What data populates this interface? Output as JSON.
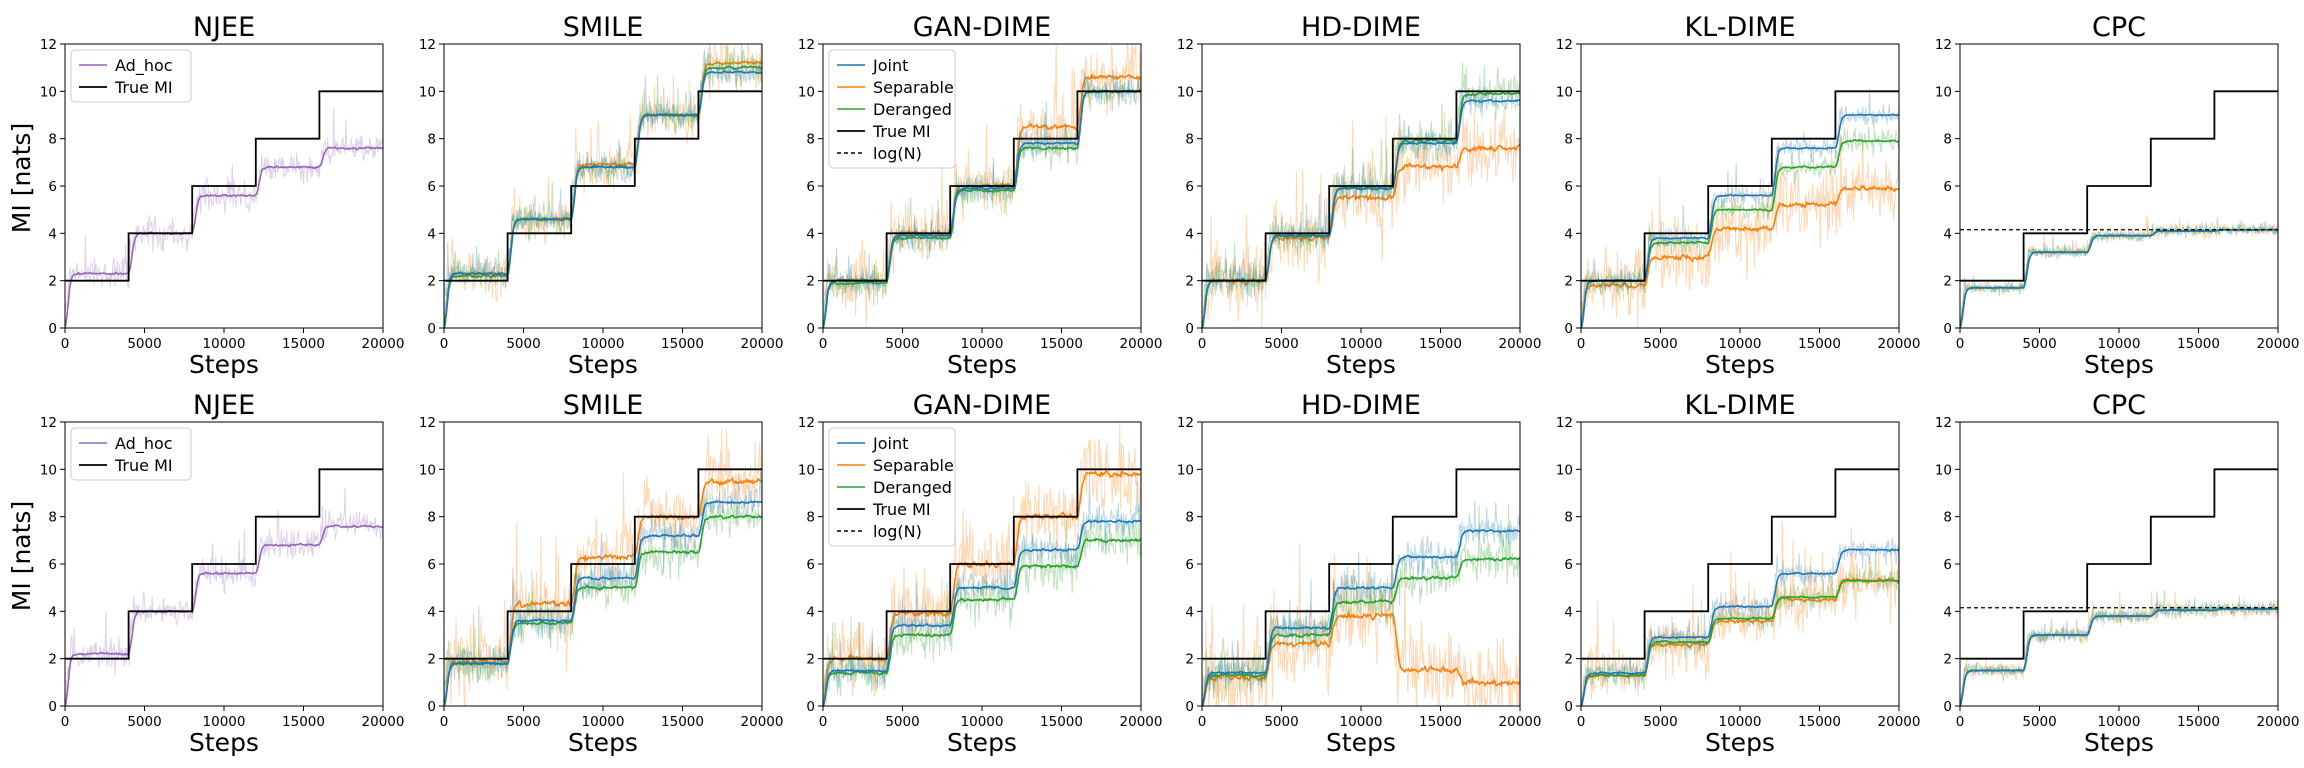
{
  "figure": {
    "ylabel": "MI [nats]",
    "xlabel": "Steps",
    "colors": {
      "Ad_hoc": "#9467bd",
      "Joint": "#1f77b4",
      "Separable": "#ff7f0e",
      "Deranged": "#2ca02c",
      "True MI": "#000000",
      "log(N)": "#000000"
    }
  },
  "chart_data": [
    {
      "row": 0,
      "col": 0,
      "type": "line",
      "title": "NJEE",
      "xlabel": "Steps",
      "ylabel": "MI [nats]",
      "xlim": [
        0,
        20000
      ],
      "ylim": [
        0,
        12
      ],
      "xticks": [
        0,
        5000,
        10000,
        15000,
        20000
      ],
      "yticks": [
        0,
        2,
        4,
        6,
        8,
        10,
        12
      ],
      "legend": [
        "Ad_hoc",
        "True MI"
      ],
      "true_mi": [
        [
          0,
          2
        ],
        [
          4000,
          4
        ],
        [
          8000,
          6
        ],
        [
          12000,
          8
        ],
        [
          16000,
          10
        ]
      ],
      "series": [
        {
          "name": "Ad_hoc",
          "levels": [
            2.3,
            4.0,
            5.6,
            6.8,
            7.6
          ],
          "noise": 0.45
        }
      ]
    },
    {
      "row": 0,
      "col": 1,
      "type": "line",
      "title": "SMILE",
      "xlabel": "Steps",
      "ylabel": "",
      "xlim": [
        0,
        20000
      ],
      "ylim": [
        0,
        12
      ],
      "xticks": [
        0,
        5000,
        10000,
        15000,
        20000
      ],
      "yticks": [
        0,
        2,
        4,
        6,
        8,
        10,
        12
      ],
      "legend": [],
      "true_mi": [
        [
          0,
          2
        ],
        [
          4000,
          4
        ],
        [
          8000,
          6
        ],
        [
          12000,
          8
        ],
        [
          16000,
          10
        ]
      ],
      "series": [
        {
          "name": "Separable",
          "levels": [
            2.3,
            4.6,
            6.9,
            9.0,
            11.2
          ],
          "noise": 0.7
        },
        {
          "name": "Deranged",
          "levels": [
            2.2,
            4.6,
            6.8,
            9.0,
            11.0
          ],
          "noise": 0.5
        },
        {
          "name": "Joint",
          "levels": [
            2.3,
            4.6,
            6.8,
            9.0,
            10.8
          ],
          "noise": 0.4
        }
      ]
    },
    {
      "row": 0,
      "col": 2,
      "type": "line",
      "title": "GAN-DIME",
      "xlabel": "Steps",
      "ylabel": "",
      "xlim": [
        0,
        20000
      ],
      "ylim": [
        0,
        12
      ],
      "xticks": [
        0,
        5000,
        10000,
        15000,
        20000
      ],
      "yticks": [
        0,
        2,
        4,
        6,
        8,
        10,
        12
      ],
      "legend": [
        "Joint",
        "Separable",
        "Deranged",
        "True MI",
        "log(N)"
      ],
      "true_mi": [
        [
          0,
          2
        ],
        [
          4000,
          4
        ],
        [
          8000,
          6
        ],
        [
          12000,
          8
        ],
        [
          16000,
          10
        ]
      ],
      "series": [
        {
          "name": "Separable",
          "levels": [
            2.0,
            4.0,
            6.0,
            8.5,
            10.6
          ],
          "noise": 0.9
        },
        {
          "name": "Deranged",
          "levels": [
            1.9,
            3.8,
            5.8,
            7.6,
            10.0
          ],
          "noise": 0.5
        },
        {
          "name": "Joint",
          "levels": [
            2.0,
            3.9,
            5.9,
            7.8,
            10.0
          ],
          "noise": 0.4
        }
      ]
    },
    {
      "row": 0,
      "col": 3,
      "type": "line",
      "title": "HD-DIME",
      "xlabel": "Steps",
      "ylabel": "",
      "xlim": [
        0,
        20000
      ],
      "ylim": [
        0,
        12
      ],
      "xticks": [
        0,
        5000,
        10000,
        15000,
        20000
      ],
      "yticks": [
        0,
        2,
        4,
        6,
        8,
        10,
        12
      ],
      "legend": [],
      "true_mi": [
        [
          0,
          2
        ],
        [
          4000,
          4
        ],
        [
          8000,
          6
        ],
        [
          12000,
          8
        ],
        [
          16000,
          10
        ]
      ],
      "series": [
        {
          "name": "Separable",
          "levels": [
            2.0,
            3.8,
            5.5,
            6.8,
            7.6
          ],
          "noise": 1.1
        },
        {
          "name": "Deranged",
          "levels": [
            2.0,
            3.9,
            5.9,
            7.9,
            9.9
          ],
          "noise": 0.6
        },
        {
          "name": "Joint",
          "levels": [
            2.0,
            3.9,
            5.9,
            7.8,
            9.6
          ],
          "noise": 0.4
        }
      ]
    },
    {
      "row": 0,
      "col": 4,
      "type": "line",
      "title": "KL-DIME",
      "xlabel": "Steps",
      "ylabel": "",
      "xlim": [
        0,
        20000
      ],
      "ylim": [
        0,
        12
      ],
      "xticks": [
        0,
        5000,
        10000,
        15000,
        20000
      ],
      "yticks": [
        0,
        2,
        4,
        6,
        8,
        10,
        12
      ],
      "legend": [],
      "true_mi": [
        [
          0,
          2
        ],
        [
          4000,
          4
        ],
        [
          8000,
          6
        ],
        [
          12000,
          8
        ],
        [
          16000,
          10
        ]
      ],
      "series": [
        {
          "name": "Separable",
          "levels": [
            1.8,
            3.0,
            4.2,
            5.2,
            5.9
          ],
          "noise": 1.0
        },
        {
          "name": "Deranged",
          "levels": [
            2.0,
            3.6,
            5.0,
            6.8,
            7.9
          ],
          "noise": 0.35
        },
        {
          "name": "Joint",
          "levels": [
            2.0,
            3.8,
            5.6,
            7.6,
            9.0
          ],
          "noise": 0.3
        }
      ]
    },
    {
      "row": 0,
      "col": 5,
      "type": "line",
      "title": "CPC",
      "xlabel": "Steps",
      "ylabel": "",
      "xlim": [
        0,
        20000
      ],
      "ylim": [
        0,
        12
      ],
      "xticks": [
        0,
        5000,
        10000,
        15000,
        20000
      ],
      "yticks": [
        0,
        2,
        4,
        6,
        8,
        10,
        12
      ],
      "legend": [],
      "log_n": 4.15,
      "true_mi": [
        [
          0,
          2
        ],
        [
          4000,
          4
        ],
        [
          8000,
          6
        ],
        [
          12000,
          8
        ],
        [
          16000,
          10
        ]
      ],
      "series": [
        {
          "name": "Separable",
          "levels": [
            1.7,
            3.2,
            3.9,
            4.1,
            4.15
          ],
          "noise": 0.2
        },
        {
          "name": "Deranged",
          "levels": [
            1.7,
            3.2,
            3.9,
            4.1,
            4.15
          ],
          "noise": 0.15
        },
        {
          "name": "Joint",
          "levels": [
            1.7,
            3.2,
            3.9,
            4.1,
            4.15
          ],
          "noise": 0.15
        }
      ]
    },
    {
      "row": 1,
      "col": 0,
      "type": "line",
      "title": "NJEE",
      "xlabel": "Steps",
      "ylabel": "MI [nats]",
      "xlim": [
        0,
        20000
      ],
      "ylim": [
        0,
        12
      ],
      "xticks": [
        0,
        5000,
        10000,
        15000,
        20000
      ],
      "yticks": [
        0,
        2,
        4,
        6,
        8,
        10,
        12
      ],
      "legend": [
        "Ad_hoc",
        "True MI"
      ],
      "true_mi": [
        [
          0,
          2
        ],
        [
          4000,
          4
        ],
        [
          8000,
          6
        ],
        [
          12000,
          8
        ],
        [
          16000,
          10
        ]
      ],
      "series": [
        {
          "name": "Ad_hoc",
          "levels": [
            2.2,
            4.0,
            5.6,
            6.8,
            7.6
          ],
          "noise": 0.45
        }
      ]
    },
    {
      "row": 1,
      "col": 1,
      "type": "line",
      "title": "SMILE",
      "xlabel": "Steps",
      "ylabel": "",
      "xlim": [
        0,
        20000
      ],
      "ylim": [
        0,
        12
      ],
      "xticks": [
        0,
        5000,
        10000,
        15000,
        20000
      ],
      "yticks": [
        0,
        2,
        4,
        6,
        8,
        10,
        12
      ],
      "legend": [],
      "true_mi": [
        [
          0,
          2
        ],
        [
          4000,
          4
        ],
        [
          8000,
          6
        ],
        [
          12000,
          8
        ],
        [
          16000,
          10
        ]
      ],
      "series": [
        {
          "name": "Separable",
          "levels": [
            1.9,
            4.3,
            6.3,
            8.0,
            9.5
          ],
          "noise": 1.1
        },
        {
          "name": "Deranged",
          "levels": [
            1.8,
            3.5,
            5.0,
            6.5,
            8.0
          ],
          "noise": 0.6
        },
        {
          "name": "Joint",
          "levels": [
            1.8,
            3.6,
            5.4,
            7.2,
            8.6
          ],
          "noise": 0.5
        }
      ]
    },
    {
      "row": 1,
      "col": 2,
      "type": "line",
      "title": "GAN-DIME",
      "xlabel": "Steps",
      "ylabel": "",
      "xlim": [
        0,
        20000
      ],
      "ylim": [
        0,
        12
      ],
      "xticks": [
        0,
        5000,
        10000,
        15000,
        20000
      ],
      "yticks": [
        0,
        2,
        4,
        6,
        8,
        10,
        12
      ],
      "legend": [
        "Joint",
        "Separable",
        "Deranged",
        "True MI",
        "log(N)"
      ],
      "true_mi": [
        [
          0,
          2
        ],
        [
          4000,
          4
        ],
        [
          8000,
          6
        ],
        [
          12000,
          8
        ],
        [
          16000,
          10
        ]
      ],
      "series": [
        {
          "name": "Separable",
          "levels": [
            2.0,
            3.9,
            6.0,
            8.0,
            9.8
          ],
          "noise": 1.1
        },
        {
          "name": "Deranged",
          "levels": [
            1.4,
            3.0,
            4.5,
            5.9,
            7.0
          ],
          "noise": 0.7
        },
        {
          "name": "Joint",
          "levels": [
            1.5,
            3.4,
            5.0,
            6.6,
            7.8
          ],
          "noise": 0.5
        }
      ]
    },
    {
      "row": 1,
      "col": 3,
      "type": "line",
      "title": "HD-DIME",
      "xlabel": "Steps",
      "ylabel": "",
      "xlim": [
        0,
        20000
      ],
      "ylim": [
        0,
        12
      ],
      "xticks": [
        0,
        5000,
        10000,
        15000,
        20000
      ],
      "yticks": [
        0,
        2,
        4,
        6,
        8,
        10,
        12
      ],
      "legend": [],
      "true_mi": [
        [
          0,
          2
        ],
        [
          4000,
          4
        ],
        [
          8000,
          6
        ],
        [
          12000,
          8
        ],
        [
          16000,
          10
        ]
      ],
      "series": [
        {
          "name": "Separable",
          "levels": [
            1.2,
            2.6,
            3.8,
            1.5,
            1.0
          ],
          "noise": 1.3
        },
        {
          "name": "Deranged",
          "levels": [
            1.3,
            3.0,
            4.4,
            5.4,
            6.2
          ],
          "noise": 0.7
        },
        {
          "name": "Joint",
          "levels": [
            1.4,
            3.3,
            5.0,
            6.3,
            7.4
          ],
          "noise": 0.5
        }
      ]
    },
    {
      "row": 1,
      "col": 4,
      "type": "line",
      "title": "KL-DIME",
      "xlabel": "Steps",
      "ylabel": "",
      "xlim": [
        0,
        20000
      ],
      "ylim": [
        0,
        12
      ],
      "xticks": [
        0,
        5000,
        10000,
        15000,
        20000
      ],
      "yticks": [
        0,
        2,
        4,
        6,
        8,
        10,
        12
      ],
      "legend": [],
      "true_mi": [
        [
          0,
          2
        ],
        [
          4000,
          4
        ],
        [
          8000,
          6
        ],
        [
          12000,
          8
        ],
        [
          16000,
          10
        ]
      ],
      "series": [
        {
          "name": "Separable",
          "levels": [
            1.3,
            2.6,
            3.6,
            4.5,
            5.3
          ],
          "noise": 0.8
        },
        {
          "name": "Deranged",
          "levels": [
            1.3,
            2.7,
            3.7,
            4.6,
            5.3
          ],
          "noise": 0.4
        },
        {
          "name": "Joint",
          "levels": [
            1.4,
            2.9,
            4.2,
            5.6,
            6.6
          ],
          "noise": 0.35
        }
      ]
    },
    {
      "row": 1,
      "col": 5,
      "type": "line",
      "title": "CPC",
      "xlabel": "Steps",
      "ylabel": "",
      "xlim": [
        0,
        20000
      ],
      "ylim": [
        0,
        12
      ],
      "xticks": [
        0,
        5000,
        10000,
        15000,
        20000
      ],
      "yticks": [
        0,
        2,
        4,
        6,
        8,
        10,
        12
      ],
      "legend": [],
      "log_n": 4.15,
      "true_mi": [
        [
          0,
          2
        ],
        [
          4000,
          4
        ],
        [
          8000,
          6
        ],
        [
          12000,
          8
        ],
        [
          16000,
          10
        ]
      ],
      "series": [
        {
          "name": "Separable",
          "levels": [
            1.5,
            3.0,
            3.8,
            4.05,
            4.1
          ],
          "noise": 0.25
        },
        {
          "name": "Deranged",
          "levels": [
            1.5,
            3.0,
            3.8,
            4.05,
            4.1
          ],
          "noise": 0.2
        },
        {
          "name": "Joint",
          "levels": [
            1.5,
            3.0,
            3.8,
            4.05,
            4.1
          ],
          "noise": 0.2
        }
      ]
    }
  ]
}
